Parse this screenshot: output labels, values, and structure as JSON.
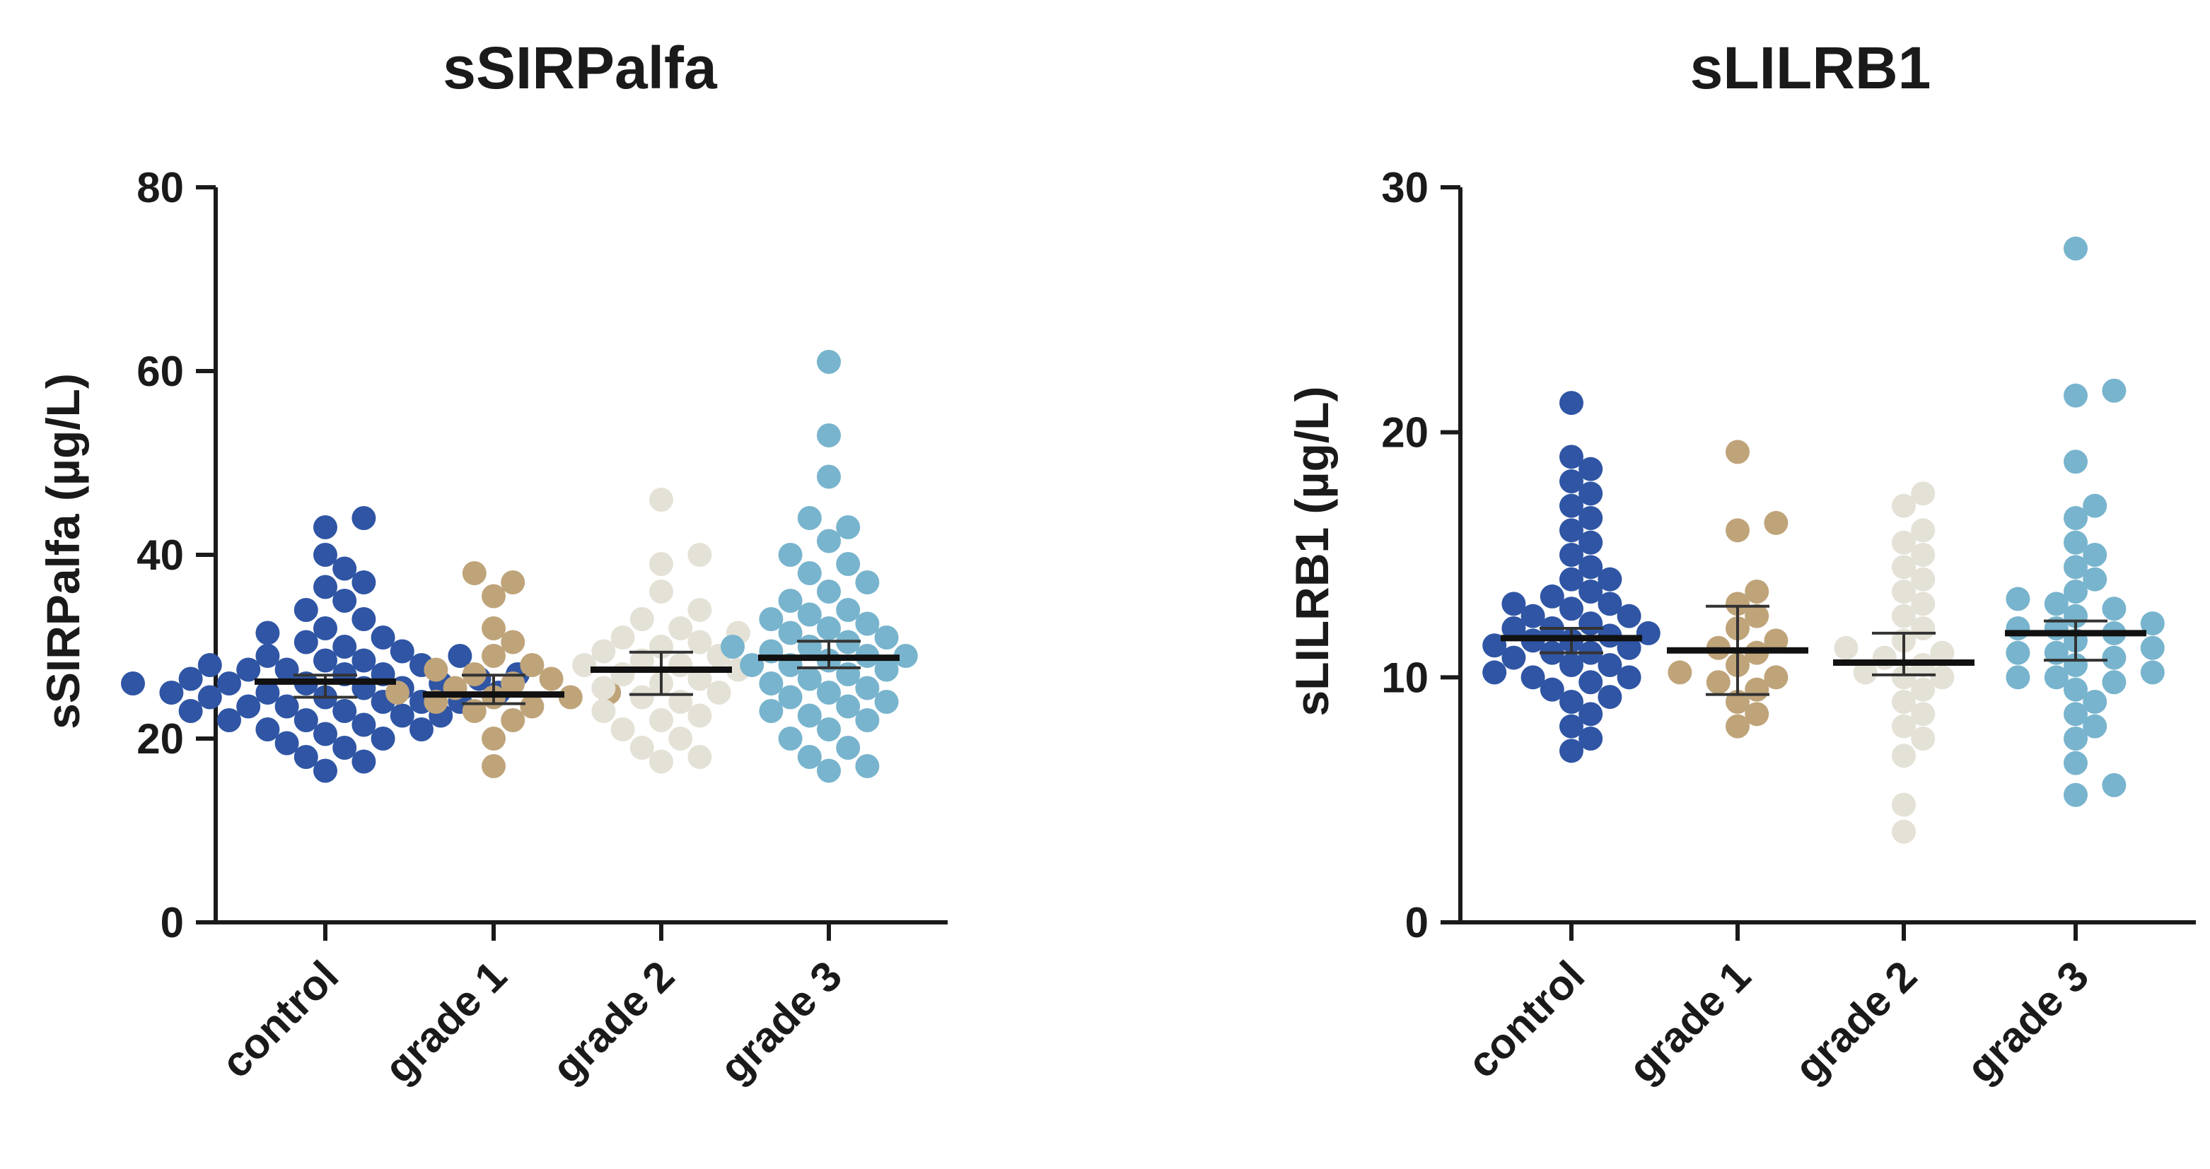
{
  "chart_data": [
    {
      "type": "scatter",
      "subtype": "dot-plot-with-median-and-95ci",
      "title": "sSIRPalfa",
      "xlabel": "",
      "ylabel": "sSIRPalfa (µg/L)",
      "ylim": [
        0,
        80
      ],
      "yticks": [
        0,
        20,
        40,
        60,
        80
      ],
      "categories": [
        "control",
        "grade 1",
        "grade 2",
        "grade 3"
      ],
      "series": [
        {
          "name": "control",
          "color": "#2f55a4",
          "values": [
            16.5,
            17.5,
            18,
            19,
            19.5,
            20,
            20.5,
            21,
            21,
            21.5,
            22,
            22,
            22.5,
            22.5,
            23,
            23,
            23.5,
            23.5,
            24,
            24,
            24,
            24.5,
            24.5,
            25,
            25,
            25,
            25.5,
            25.5,
            26,
            26,
            26,
            26,
            26.5,
            26.5,
            27,
            27,
            27,
            27.5,
            27.5,
            28,
            28,
            28.5,
            28.5,
            29,
            29,
            29.5,
            30,
            30.5,
            31,
            31.5,
            32,
            33,
            34,
            35,
            36.5,
            37,
            38.5,
            40,
            43,
            44
          ],
          "median": 26.2,
          "ci": [
            24.5,
            26.9
          ]
        },
        {
          "name": "grade 1",
          "color": "#bfa47a",
          "values": [
            17,
            20,
            22,
            23,
            23.5,
            24,
            24.5,
            24.5,
            25,
            25,
            25.5,
            26,
            26.5,
            27,
            27.5,
            28,
            29,
            30.5,
            32,
            35.5,
            37,
            38
          ],
          "median": 24.8,
          "ci": [
            23.8,
            26.9
          ]
        },
        {
          "name": "grade 2",
          "color": "#e4e1d6",
          "values": [
            17.5,
            18,
            19,
            20,
            21,
            22,
            22.5,
            23,
            24,
            24.5,
            25,
            25.5,
            26,
            26.5,
            27,
            27.5,
            28,
            28,
            28.5,
            29,
            29.5,
            30,
            30.5,
            31,
            31.5,
            32,
            33,
            34,
            36,
            39,
            40,
            46
          ],
          "median": 27.5,
          "ci": [
            24.8,
            29.4
          ]
        },
        {
          "name": "grade 3",
          "color": "#78b4cd",
          "values": [
            16.5,
            17,
            18,
            19,
            20,
            21,
            22,
            22.5,
            23,
            23.5,
            24,
            24.5,
            25,
            25.5,
            26,
            26.5,
            27,
            27.5,
            28,
            28,
            28.5,
            29,
            29,
            29.5,
            30,
            30,
            30.5,
            31,
            31.5,
            32,
            32.5,
            33,
            33.5,
            34,
            35,
            36,
            37,
            38,
            39,
            40,
            41.5,
            43,
            44,
            48.5,
            53,
            61
          ],
          "median": 28.8,
          "ci": [
            27.7,
            30.6
          ]
        }
      ]
    },
    {
      "type": "scatter",
      "subtype": "dot-plot-with-median-and-95ci",
      "title": "sLILRB1",
      "xlabel": "",
      "ylabel": "sLILRB1 (µg/L)",
      "ylim": [
        0,
        30
      ],
      "yticks": [
        0,
        10,
        20,
        30
      ],
      "categories": [
        "control",
        "grade 1",
        "grade 2",
        "grade 3"
      ],
      "series": [
        {
          "name": "control",
          "color": "#2f55a4",
          "values": [
            7,
            7.5,
            8,
            8.5,
            9,
            9.2,
            9.5,
            9.8,
            10,
            10,
            10.2,
            10.5,
            10.5,
            10.8,
            11,
            11,
            11.2,
            11.3,
            11.5,
            11.5,
            11.7,
            11.8,
            12,
            12,
            12.2,
            12.5,
            12.5,
            12.8,
            13,
            13,
            13.3,
            13.5,
            14,
            14,
            14.5,
            15,
            15.5,
            16,
            16.5,
            17,
            17.5,
            18,
            18.5,
            19,
            21.2
          ],
          "median": 11.6,
          "ci": [
            11.0,
            12.0
          ]
        },
        {
          "name": "grade 1",
          "color": "#bfa47a",
          "values": [
            8,
            8.5,
            9,
            9.5,
            9.8,
            10,
            10.2,
            10.5,
            11,
            11.2,
            11.5,
            12,
            12.5,
            13,
            13.5,
            16,
            16.3,
            19.2
          ],
          "median": 11.1,
          "ci": [
            9.3,
            12.9
          ]
        },
        {
          "name": "grade 2",
          "color": "#e4e1d6",
          "values": [
            3.7,
            4.8,
            6.8,
            7.5,
            8,
            8.5,
            9,
            9.5,
            10,
            10,
            10.2,
            10.5,
            10.8,
            11,
            11.2,
            11.5,
            12,
            12.5,
            13,
            13.5,
            14,
            14.5,
            15,
            15.5,
            16,
            17,
            17.5
          ],
          "median": 10.6,
          "ci": [
            10.1,
            11.8
          ]
        },
        {
          "name": "grade 3",
          "color": "#78b4cd",
          "values": [
            5.2,
            5.6,
            6.5,
            7.5,
            8,
            8.5,
            9,
            9.5,
            9.8,
            10,
            10,
            10.2,
            10.5,
            10.8,
            11,
            11,
            11.2,
            11.5,
            11.8,
            12,
            12,
            12.2,
            12.5,
            12.8,
            13,
            13.2,
            13.5,
            14,
            14.5,
            15,
            15.5,
            16.5,
            17,
            18.8,
            21.5,
            21.7,
            27.5
          ],
          "median": 11.8,
          "ci": [
            10.7,
            12.3
          ]
        }
      ]
    }
  ]
}
